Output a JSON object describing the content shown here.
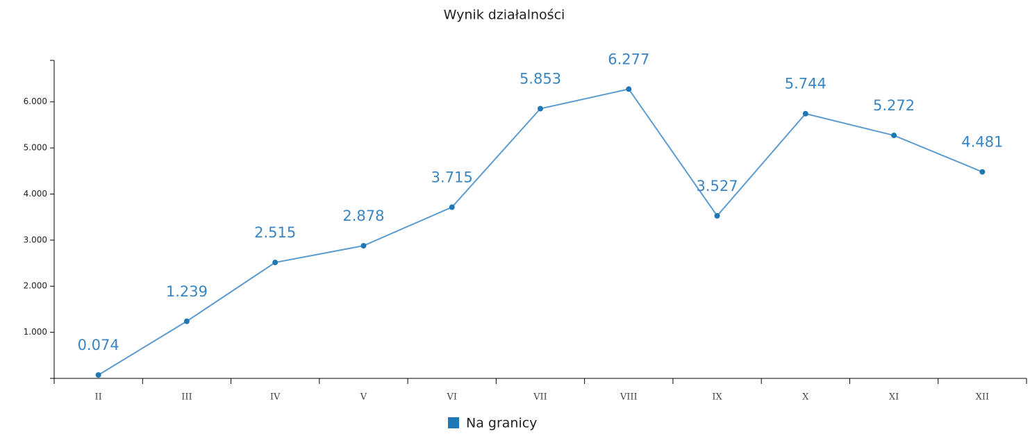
{
  "chart_data": {
    "type": "line",
    "title": "Wynik działalności",
    "categories": [
      "II",
      "III",
      "IV",
      "V",
      "VI",
      "VII",
      "VIII",
      "IX",
      "X",
      "XI",
      "XII"
    ],
    "series": [
      {
        "name": "Na granicy",
        "color": "#1f77b4",
        "values": [
          74,
          1239,
          2515,
          2878,
          3715,
          5853,
          6277,
          3527,
          5744,
          5272,
          4481
        ],
        "value_labels": [
          "0.074",
          "1.239",
          "2.515",
          "2.878",
          "3.715",
          "5.853",
          "6.277",
          "3.527",
          "5.744",
          "5.272",
          "4.481"
        ]
      }
    ],
    "ylim": [
      0,
      6900
    ],
    "yticks": [
      {
        "value": 1000,
        "label": "1.000"
      },
      {
        "value": 2000,
        "label": "2.000"
      },
      {
        "value": 3000,
        "label": "3.000"
      },
      {
        "value": 4000,
        "label": "4.000"
      },
      {
        "value": 5000,
        "label": "5.000"
      },
      {
        "value": 6000,
        "label": "6.000"
      }
    ],
    "legend": "bottom"
  }
}
